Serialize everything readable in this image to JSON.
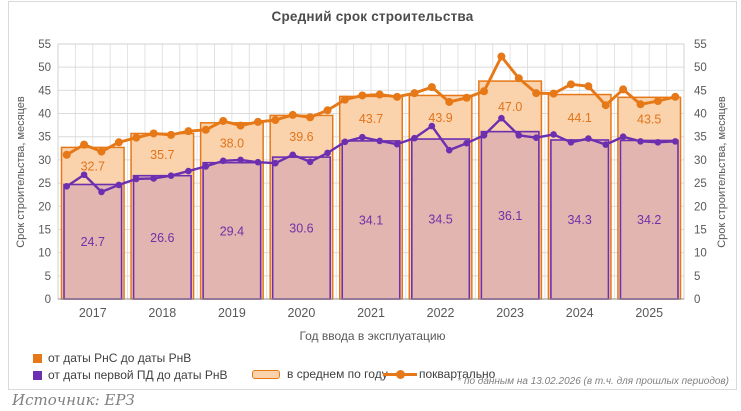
{
  "title": "Средний срок строительства",
  "axes": {
    "y_left_title": "Срок строительства, месяцев",
    "y_right_title": "Срок строительства, месяцев",
    "x_title": "Год ввода в эксплуатацию",
    "y_min": 0,
    "y_max": 55,
    "y_tick_step": 5
  },
  "legend": {
    "items": [
      {
        "label": "от даты РнС до даты РнВ",
        "icon": "orange-square-icon",
        "color": "#E67817"
      },
      {
        "label": "от даты первой ПД до даты РнВ",
        "icon": "purple-square-icon",
        "color": "#6C2FB0"
      },
      {
        "label": "в среднем по году",
        "icon": "annual-bar-swatch-icon",
        "color": "#FAD3AD"
      },
      {
        "label": "поквартально",
        "icon": "quarterly-line-swatch-icon",
        "color": "#E67817"
      }
    ]
  },
  "footnote": "* по данным на 13.02.2026 (в т.ч. для прошлых периодов)",
  "source": "Источник: ЕРЗ",
  "colors": {
    "orange": "#E67817",
    "orange_label": "#E2741A",
    "bar_fill": "#FAD3AD",
    "purple": "#6C2FB0",
    "purple_label": "#7031A8",
    "inner_bar_fill": "#E2B5B0",
    "grid_h": "#DBDBDB",
    "grid_v": "#E2E2E2",
    "plot_border": "#D2D2D2",
    "axis_line": "#8C8C8C",
    "axis_text": "#595959",
    "title_text": "#4C4C4C",
    "footnote_text": "#7F7F7F"
  },
  "chart_data": {
    "type": "bar",
    "subtype": "annual average bars (two overlaid series) + quarterly lines",
    "title": "Средний срок строительства",
    "xlabel": "Год ввода в эксплуатацию",
    "ylabel": "Срок строительства, месяцев",
    "ylim": [
      0,
      55
    ],
    "ytick_step": 5,
    "grid": true,
    "legend_position": "bottom",
    "categories": [
      "2017",
      "2018",
      "2019",
      "2020",
      "2021",
      "2022",
      "2023",
      "2024",
      "2025"
    ],
    "bar_series": [
      {
        "name": "в среднем по году: от даты РнС до даты РнВ",
        "values": [
          32.7,
          35.7,
          38.0,
          39.6,
          43.7,
          43.9,
          47.0,
          44.1,
          43.5
        ]
      },
      {
        "name": "в среднем по году: от даты первой ПД до даты РнВ",
        "values": [
          24.7,
          26.6,
          29.4,
          30.6,
          34.1,
          34.5,
          36.1,
          34.3,
          34.2
        ]
      }
    ],
    "line_series": [
      {
        "name": "поквартально: от даты РнС до даты РнВ",
        "points_per_category": 4,
        "values": [
          31.1,
          33.3,
          31.8,
          33.8,
          34.8,
          35.7,
          35.4,
          36.2,
          36.5,
          38.4,
          37.4,
          38.2,
          38.6,
          39.7,
          39.2,
          40.7,
          43.0,
          43.9,
          44.1,
          43.6,
          44.4,
          45.7,
          42.5,
          43.4,
          44.8,
          52.3,
          47.6,
          44.4,
          44.3,
          46.3,
          45.9,
          41.8,
          45.2,
          42.0,
          42.7,
          43.6
        ]
      },
      {
        "name": "поквартально: от даты первой ПД до даты РнВ",
        "points_per_category": 4,
        "values": [
          24.3,
          26.8,
          23.1,
          24.6,
          25.9,
          26.0,
          26.6,
          27.6,
          28.6,
          29.8,
          30.0,
          29.5,
          29.3,
          31.1,
          29.6,
          31.5,
          33.9,
          34.9,
          34.1,
          33.4,
          34.7,
          37.3,
          32.1,
          33.6,
          35.3,
          39.0,
          35.3,
          34.8,
          35.5,
          33.8,
          34.6,
          33.3,
          35.0,
          34.0,
          33.8,
          34.0
        ]
      }
    ]
  }
}
